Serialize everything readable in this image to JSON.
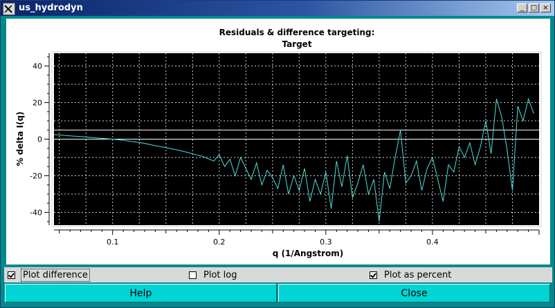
{
  "window": {
    "title": "us_hydrodyn"
  },
  "titlebar_buttons": {
    "minimize": "_",
    "maximize": "□",
    "close": "×"
  },
  "icons": {
    "app": "x11-app-icon"
  },
  "chart_data": {
    "type": "line",
    "title": "Residuals & difference targeting:",
    "subtitle": "Target",
    "xlabel": "q (1/Angstrom)",
    "ylabel": "% delta I(q)",
    "xlim": [
      0.045,
      0.5
    ],
    "ylim": [
      -47,
      47
    ],
    "x_ticks": [
      0.1,
      0.2,
      0.3,
      0.4
    ],
    "x_tick_labels": [
      "0.1",
      "0.2",
      "0.3",
      "0.4"
    ],
    "y_ticks": [
      -40,
      -20,
      0,
      20,
      40
    ],
    "y_tick_labels": [
      "-40",
      "-20",
      "0",
      "20",
      "40"
    ],
    "grid": true,
    "background_color": "#000000",
    "line_color": "#4de0e0",
    "reference_lines": [
      0,
      5
    ],
    "reference_line_color": "#ffffff",
    "series": [
      {
        "x": [
          0.045,
          0.05,
          0.06,
          0.07,
          0.08,
          0.09,
          0.1,
          0.11,
          0.12,
          0.13,
          0.14,
          0.15,
          0.16,
          0.17,
          0.18,
          0.185,
          0.19,
          0.195,
          0.2,
          0.205,
          0.21,
          0.215,
          0.22,
          0.225,
          0.23,
          0.235,
          0.24,
          0.245,
          0.25,
          0.255,
          0.26,
          0.265,
          0.27,
          0.275,
          0.28,
          0.285,
          0.29,
          0.295,
          0.3,
          0.305,
          0.31,
          0.315,
          0.32,
          0.325,
          0.33,
          0.335,
          0.34,
          0.345,
          0.35,
          0.355,
          0.36,
          0.365,
          0.37,
          0.375,
          0.38,
          0.385,
          0.39,
          0.395,
          0.4,
          0.405,
          0.41,
          0.415,
          0.42,
          0.425,
          0.43,
          0.435,
          0.44,
          0.445,
          0.45,
          0.455,
          0.46,
          0.465,
          0.47,
          0.475,
          0.48,
          0.485,
          0.49,
          0.495
        ],
        "y": [
          2.5,
          2.3,
          1.8,
          1.4,
          0.9,
          0.4,
          0.0,
          -0.6,
          -1.4,
          -2.3,
          -3.6,
          -4.6,
          -5.8,
          -7.2,
          -8.8,
          -9.5,
          -10.8,
          -12.0,
          -8.5,
          -15.0,
          -11.0,
          -20.0,
          -10.0,
          -16.0,
          -22.0,
          -13.0,
          -25.0,
          -17.0,
          -21.0,
          -27.0,
          -14.0,
          -30.0,
          -20.0,
          -28.0,
          -16.0,
          -34.0,
          -22.0,
          -30.0,
          -18.0,
          -38.0,
          -12.0,
          -26.0,
          -9.0,
          -32.0,
          -24.0,
          -14.0,
          -30.0,
          -22.0,
          -45.0,
          -18.0,
          -27.0,
          -10.0,
          5.0,
          -24.0,
          -20.0,
          -12.0,
          -28.0,
          -16.0,
          -10.0,
          -22.0,
          -34.0,
          -14.0,
          -18.0,
          -4.0,
          -10.0,
          -2.0,
          -14.0,
          -4.0,
          10.0,
          -8.0,
          22.0,
          12.0,
          -6.0,
          -28.0,
          18.0,
          10.0,
          22.0,
          14.0
        ]
      }
    ]
  },
  "controls": {
    "plot_difference": {
      "label": "Plot difference",
      "checked": true
    },
    "plot_log": {
      "label": "Plot log",
      "checked": false
    },
    "plot_as_percent": {
      "label": "Plot as percent",
      "checked": true
    }
  },
  "buttons": {
    "help": "Help",
    "close": "Close"
  }
}
